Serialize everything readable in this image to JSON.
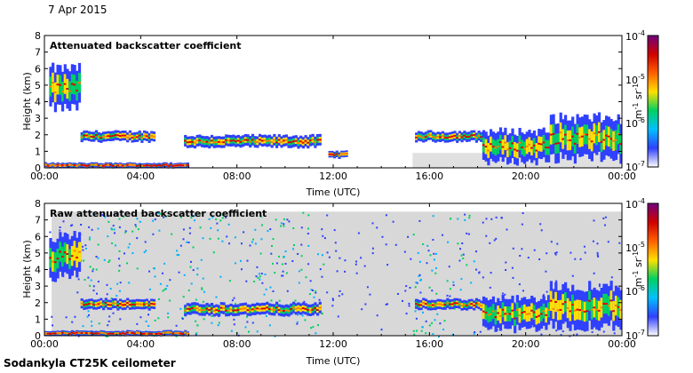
{
  "header": {
    "date": "7 Apr 2015"
  },
  "footer": {
    "instrument": "Sodankyla CT25K ceilometer"
  },
  "colorbar": {
    "tick_labels": [
      "10",
      "10",
      "10",
      "10"
    ],
    "exponents": [
      "-4",
      "-5",
      "-6",
      "-7"
    ],
    "unit_m": "m",
    "unit_m_exp": "-1",
    "unit_sr": " sr",
    "unit_sr_exp": "-1",
    "stops": [
      "#ffffff",
      "#3040ff",
      "#00c0ff",
      "#00d060",
      "#ffe000",
      "#ff6000",
      "#d00000",
      "#700080"
    ]
  },
  "chart_data": [
    {
      "type": "heatmap",
      "title": "Attenuated backscatter coefficient",
      "xlabel": "Time (UTC)",
      "ylabel": "Height (km)",
      "xlim": [
        0,
        24
      ],
      "ylim": [
        0,
        8
      ],
      "x_ticks": [
        "00:00",
        "04:00",
        "08:00",
        "12:00",
        "16:00",
        "20:00",
        "00:00"
      ],
      "y_ticks": [
        "0",
        "1",
        "2",
        "3",
        "4",
        "5",
        "6",
        "7",
        "8"
      ],
      "background_noise": false,
      "cloud_layers": [
        {
          "t_start": 0.2,
          "t_end": 1.5,
          "height_km": 4.8,
          "thickness_km": 1.2
        },
        {
          "t_start": 1.5,
          "t_end": 4.6,
          "height_km": 1.9,
          "thickness_km": 0.3
        },
        {
          "t_start": 5.8,
          "t_end": 11.5,
          "height_km": 1.6,
          "thickness_km": 0.35
        },
        {
          "t_start": 11.8,
          "t_end": 12.6,
          "height_km": 0.8,
          "thickness_km": 0.2
        },
        {
          "t_start": 15.4,
          "t_end": 18.2,
          "height_km": 1.9,
          "thickness_km": 0.3
        },
        {
          "t_start": 18.2,
          "t_end": 21.0,
          "height_km": 1.3,
          "thickness_km": 0.9
        },
        {
          "t_start": 21.0,
          "t_end": 24.0,
          "height_km": 1.8,
          "thickness_km": 1.2
        },
        {
          "t_start": 0.0,
          "t_end": 6.0,
          "height_km": 0.15,
          "thickness_km": 0.15
        }
      ]
    },
    {
      "type": "heatmap",
      "title": "Raw attenuated backscatter coefficient",
      "xlabel": "Time (UTC)",
      "ylabel": "Height (km)",
      "xlim": [
        0,
        24
      ],
      "ylim": [
        0,
        8
      ],
      "x_ticks": [
        "00:00",
        "04:00",
        "08:00",
        "12:00",
        "16:00",
        "20:00",
        "00:00"
      ],
      "y_ticks": [
        "0",
        "1",
        "2",
        "3",
        "4",
        "5",
        "6",
        "7",
        "8"
      ],
      "background_noise": true,
      "cloud_layers": [
        {
          "t_start": 0.2,
          "t_end": 1.5,
          "height_km": 4.8,
          "thickness_km": 1.2
        },
        {
          "t_start": 1.5,
          "t_end": 4.6,
          "height_km": 1.9,
          "thickness_km": 0.3
        },
        {
          "t_start": 5.8,
          "t_end": 11.5,
          "height_km": 1.6,
          "thickness_km": 0.35
        },
        {
          "t_start": 15.4,
          "t_end": 18.2,
          "height_km": 1.9,
          "thickness_km": 0.3
        },
        {
          "t_start": 18.2,
          "t_end": 21.0,
          "height_km": 1.3,
          "thickness_km": 0.9
        },
        {
          "t_start": 21.0,
          "t_end": 24.0,
          "height_km": 1.8,
          "thickness_km": 1.2
        },
        {
          "t_start": 0.0,
          "t_end": 6.0,
          "height_km": 0.15,
          "thickness_km": 0.15
        }
      ]
    }
  ]
}
